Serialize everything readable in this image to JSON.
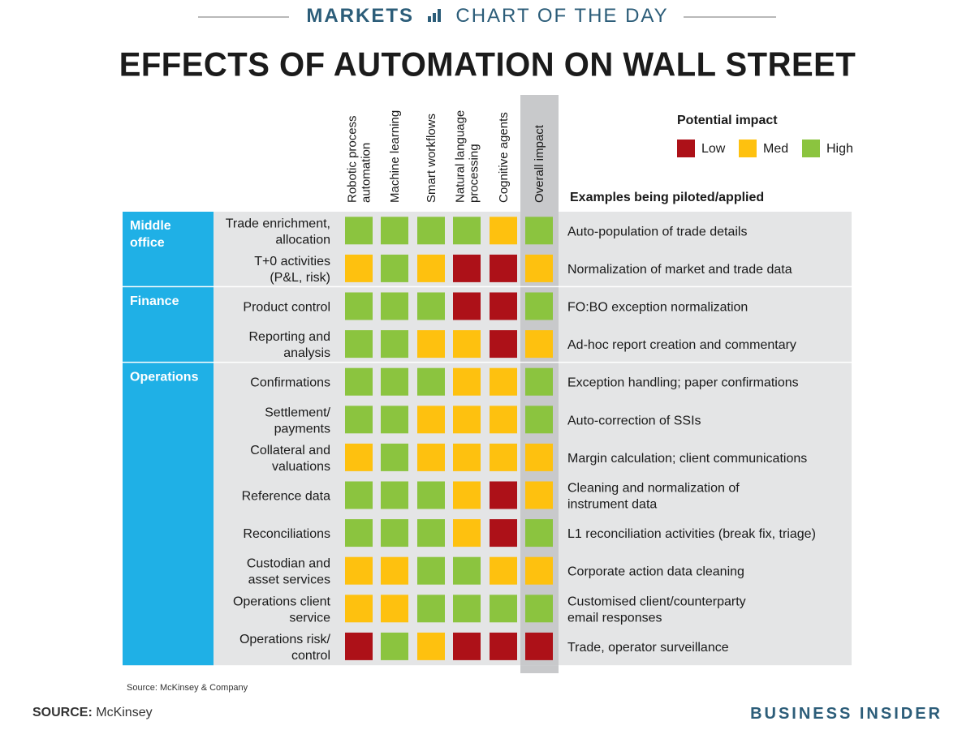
{
  "header": {
    "section": "MARKETS",
    "series": "CHART OF THE DAY",
    "title": "EFFECTS OF AUTOMATION ON WALL STREET"
  },
  "footer": {
    "chart_source": "Source: McKinsey & Company",
    "source_label": "SOURCE:",
    "source_value": "McKinsey",
    "brand": "BUSINESS INSIDER"
  },
  "colors": {
    "Low": "#ad1118",
    "Med": "#fec10f",
    "High": "#8bc43f",
    "section_band": "#1fb0e6",
    "row_bg": "#e4e5e6",
    "overall_col_bg": "#c8c9cb",
    "brand_blue": "#2c5d79"
  },
  "chart_data": {
    "type": "table",
    "title": "EFFECTS OF AUTOMATION ON WALL STREET",
    "columns": [
      "Robotic process automation",
      "Machine learning",
      "Smart workflows",
      "Natural language processing",
      "Cognitive agents",
      "Overall impact"
    ],
    "column_lines": [
      [
        "Robotic process",
        "automation"
      ],
      [
        "Machine learning"
      ],
      [
        "Smart workflows"
      ],
      [
        "Natural language",
        "processing"
      ],
      [
        "Cognitive agents"
      ],
      [
        "Overall impact"
      ]
    ],
    "legend": {
      "title": "Potential impact",
      "levels": [
        "Low",
        "Med",
        "High"
      ]
    },
    "examples_header": "Examples being piloted/applied",
    "sections": [
      {
        "name": "Middle office",
        "name_lines": [
          "Middle",
          "office"
        ],
        "rows": [
          {
            "process": [
              "Trade enrichment,",
              "allocation"
            ],
            "impact": [
              "High",
              "High",
              "High",
              "High",
              "Med",
              "High"
            ],
            "example": [
              "Auto-population of trade details"
            ]
          },
          {
            "process": [
              "T+0 activities",
              "(P&L, risk)"
            ],
            "impact": [
              "Med",
              "High",
              "Med",
              "Low",
              "Low",
              "Med"
            ],
            "example": [
              "Normalization of market and trade data"
            ]
          }
        ]
      },
      {
        "name": "Finance",
        "name_lines": [
          "Finance"
        ],
        "rows": [
          {
            "process": [
              "Product control"
            ],
            "impact": [
              "High",
              "High",
              "High",
              "Low",
              "Low",
              "High"
            ],
            "example": [
              "FO:BO exception normalization"
            ]
          },
          {
            "process": [
              "Reporting and",
              "analysis"
            ],
            "impact": [
              "High",
              "High",
              "Med",
              "Med",
              "Low",
              "Med"
            ],
            "example": [
              "Ad-hoc report creation and commentary"
            ]
          }
        ]
      },
      {
        "name": "Operations",
        "name_lines": [
          "Operations"
        ],
        "rows": [
          {
            "process": [
              "Confirmations"
            ],
            "impact": [
              "High",
              "High",
              "High",
              "Med",
              "Med",
              "High"
            ],
            "example": [
              "Exception handling; paper confirmations"
            ]
          },
          {
            "process": [
              "Settlement/",
              "payments"
            ],
            "impact": [
              "High",
              "High",
              "Med",
              "Med",
              "Med",
              "High"
            ],
            "example": [
              "Auto-correction of SSIs"
            ]
          },
          {
            "process": [
              "Collateral and",
              "valuations"
            ],
            "impact": [
              "Med",
              "High",
              "Med",
              "Med",
              "Med",
              "Med"
            ],
            "example": [
              "Margin calculation; client communications"
            ]
          },
          {
            "process": [
              "Reference data"
            ],
            "impact": [
              "High",
              "High",
              "High",
              "Med",
              "Low",
              "Med"
            ],
            "example": [
              "Cleaning and normalization of",
              "instrument data"
            ]
          },
          {
            "process": [
              "Reconciliations"
            ],
            "impact": [
              "High",
              "High",
              "High",
              "Med",
              "Low",
              "High"
            ],
            "example": [
              "L1 reconciliation activities (break fix, triage)"
            ]
          },
          {
            "process": [
              "Custodian and",
              "asset services"
            ],
            "impact": [
              "Med",
              "Med",
              "High",
              "High",
              "Med",
              "Med"
            ],
            "example": [
              "Corporate action data cleaning"
            ]
          },
          {
            "process": [
              "Operations client",
              "service"
            ],
            "impact": [
              "Med",
              "Med",
              "High",
              "High",
              "High",
              "High"
            ],
            "example": [
              "Customised client/counterparty",
              "email responses"
            ]
          },
          {
            "process": [
              "Operations risk/",
              "control"
            ],
            "impact": [
              "Low",
              "High",
              "Med",
              "Low",
              "Low",
              "Low"
            ],
            "example": [
              "Trade, operator surveillance"
            ]
          }
        ]
      }
    ]
  }
}
